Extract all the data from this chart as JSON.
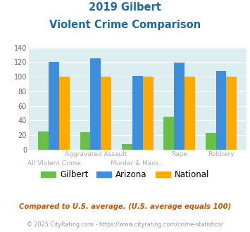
{
  "title_line1": "2019 Gilbert",
  "title_line2": "Violent Crime Comparison",
  "top_labels": [
    "",
    "Aggravated Assault",
    "",
    "Rape",
    "Robbery"
  ],
  "bottom_labels": [
    "All Violent Crime",
    "",
    "Murder & Mans...",
    "",
    ""
  ],
  "gilbert": [
    25,
    24,
    8,
    45,
    23
  ],
  "arizona": [
    120,
    125,
    101,
    119,
    108
  ],
  "national": [
    100,
    100,
    100,
    100,
    100
  ],
  "gilbert_color": "#6abf4b",
  "arizona_color": "#3d8edc",
  "national_color": "#ffaa00",
  "bg_color": "#ddeef0",
  "ylim": [
    0,
    140
  ],
  "yticks": [
    0,
    20,
    40,
    60,
    80,
    100,
    120,
    140
  ],
  "legend_labels": [
    "Gilbert",
    "Arizona",
    "National"
  ],
  "footnote1": "Compared to U.S. average. (U.S. average equals 100)",
  "footnote2": "© 2025 CityRating.com - https://www.cityrating.com/crime-statistics/",
  "title_color": "#1a6aa0",
  "footnote1_color": "#cc5500",
  "footnote2_color": "#999999",
  "label_color": "#aaaaaa"
}
